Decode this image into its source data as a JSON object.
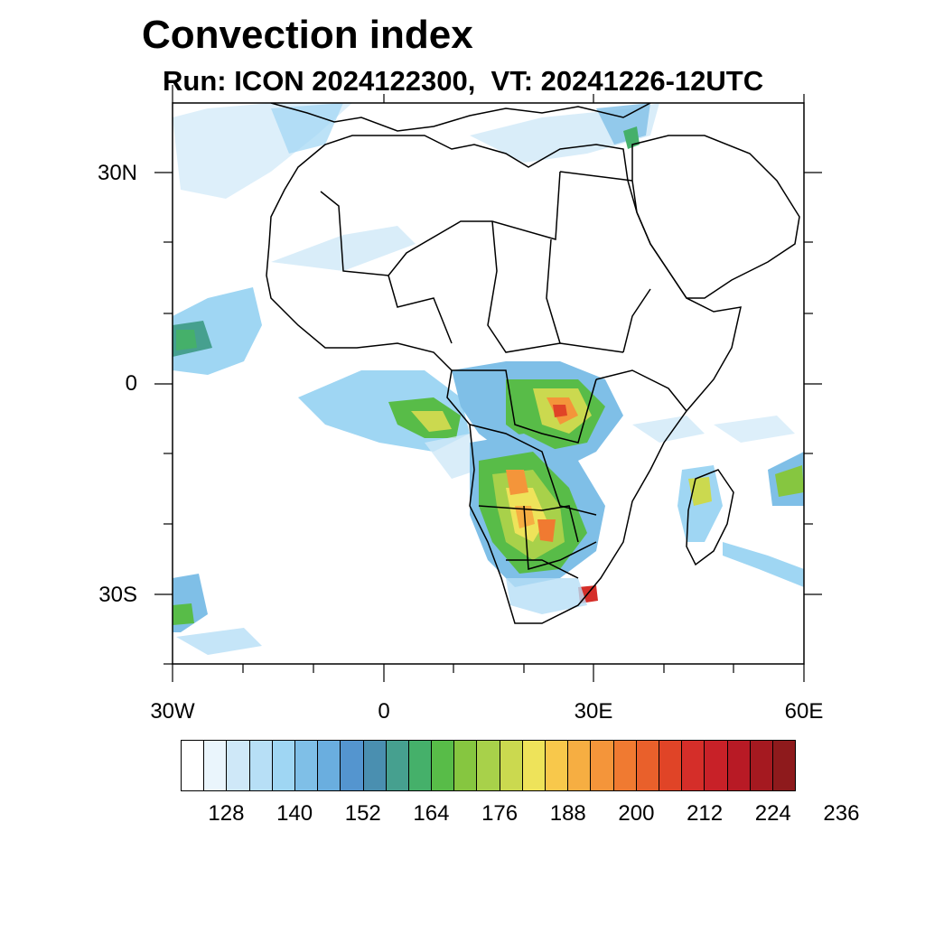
{
  "title": "Convection index",
  "subtitle": "Run: ICON 2024122300,  VT: 20241226-12UTC",
  "map": {
    "lat_labels": [
      "30N",
      "0",
      "30S"
    ],
    "lon_labels": [
      "30W",
      "0",
      "30E",
      "60E"
    ],
    "extent": {
      "lon_min": -30,
      "lon_max": 60,
      "lat_min": -40,
      "lat_max": 40
    }
  },
  "colorbar": {
    "colors": [
      "#ffffff",
      "#eaf5fc",
      "#cfe8f8",
      "#b7dff6",
      "#9fd6f3",
      "#7fbfe7",
      "#6aaedf",
      "#5495cf",
      "#4a8fb0",
      "#46a08f",
      "#45b06a",
      "#58bc48",
      "#86c640",
      "#a8d14a",
      "#cbd94f",
      "#eee35a",
      "#f8c84b",
      "#f6ae42",
      "#f4953a",
      "#f07a31",
      "#e9602b",
      "#e04427",
      "#d52e29",
      "#c82128",
      "#b81a25",
      "#a51920",
      "#8e1a1c"
    ],
    "tick_labels": [
      "128",
      "140",
      "152",
      "164",
      "176",
      "188",
      "200",
      "212",
      "224",
      "236"
    ]
  }
}
